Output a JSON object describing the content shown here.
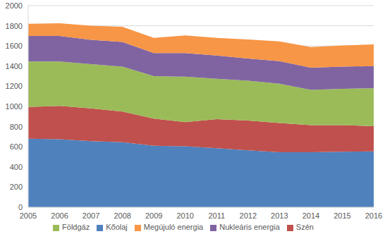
{
  "chart_data": {
    "type": "area",
    "stacked": true,
    "grid": true,
    "legend": "bottom",
    "categories": [
      "2005",
      "2006",
      "2007",
      "2008",
      "2009",
      "2010",
      "2011",
      "2012",
      "2013",
      "2014",
      "2015",
      "2016"
    ],
    "ylim": [
      0,
      2000
    ],
    "yticks": [
      0,
      200,
      400,
      600,
      800,
      1000,
      1200,
      1400,
      1600,
      1800,
      2000
    ],
    "series": [
      {
        "name": "Kőolaj",
        "color": "#4f81bd",
        "values": [
          680,
          675,
          655,
          645,
          610,
          605,
          585,
          565,
          545,
          545,
          550,
          555
        ]
      },
      {
        "name": "Szén",
        "color": "#c0504d",
        "values": [
          315,
          330,
          325,
          305,
          270,
          240,
          290,
          295,
          290,
          270,
          265,
          250
        ]
      },
      {
        "name": "Földgáz",
        "color": "#9bbb59",
        "values": [
          450,
          440,
          440,
          445,
          420,
          450,
          400,
          395,
          390,
          350,
          360,
          375
        ]
      },
      {
        "name": "Nukleáris energia",
        "color": "#8064a2",
        "values": [
          255,
          255,
          240,
          245,
          230,
          235,
          230,
          220,
          225,
          220,
          220,
          220
        ]
      },
      {
        "name": "Megújuló energia",
        "color": "#f79646",
        "values": [
          120,
          125,
          140,
          150,
          150,
          175,
          175,
          190,
          195,
          205,
          210,
          215
        ]
      }
    ]
  }
}
